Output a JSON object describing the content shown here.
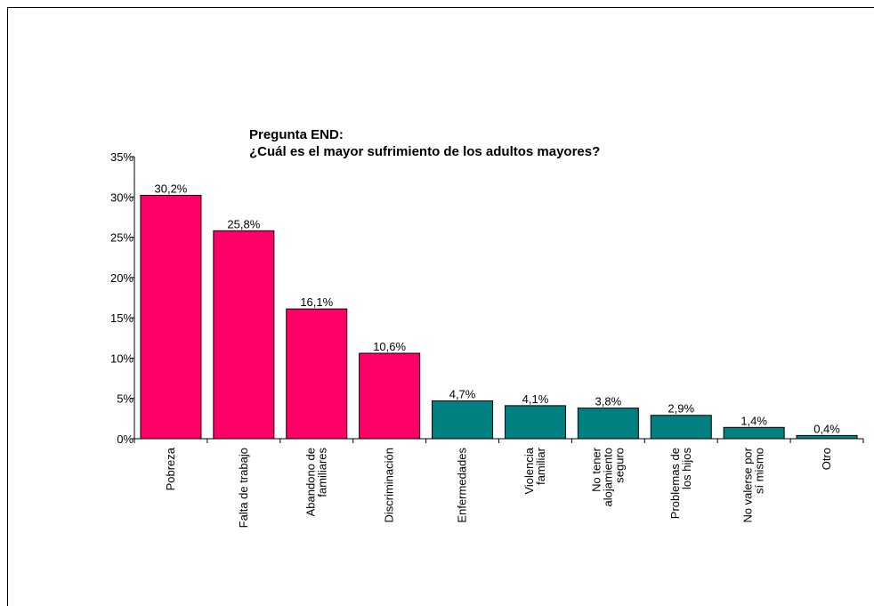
{
  "chart_data": {
    "type": "bar",
    "title_lines": [
      "Pregunta END:",
      "¿Cuál es el mayor sufrimiento de los adultos mayores?"
    ],
    "categories": [
      [
        "Pobreza"
      ],
      [
        "Falta de trabajo"
      ],
      [
        "Abandono de",
        "familiares"
      ],
      [
        "Discriminación"
      ],
      [
        "Enfermedades"
      ],
      [
        "Violencia",
        "familiar"
      ],
      [
        "No tener",
        "alojamiento",
        "seguro"
      ],
      [
        "Problemas de",
        "los hijos"
      ],
      [
        "No valerse por",
        "sí mismo"
      ],
      [
        "Otro"
      ]
    ],
    "values": [
      30.2,
      25.8,
      16.1,
      10.6,
      4.7,
      4.1,
      3.8,
      2.9,
      1.4,
      0.4
    ],
    "value_labels": [
      "30,2%",
      "25,8%",
      "16,1%",
      "10,6%",
      "4,7%",
      "4,1%",
      "3,8%",
      "2,9%",
      "1,4%",
      "0,4%"
    ],
    "bar_colors": [
      "#ff0066",
      "#ff0066",
      "#ff0066",
      "#ff0066",
      "#008080",
      "#008080",
      "#008080",
      "#008080",
      "#008080",
      "#008080"
    ],
    "y_ticks": [
      0,
      5,
      10,
      15,
      20,
      25,
      30,
      35
    ],
    "y_tick_labels": [
      "0%",
      "5%",
      "10%",
      "15%",
      "20%",
      "25%",
      "30%",
      "35%"
    ],
    "ylim": [
      0,
      35
    ],
    "grid": false,
    "legend": "none"
  }
}
